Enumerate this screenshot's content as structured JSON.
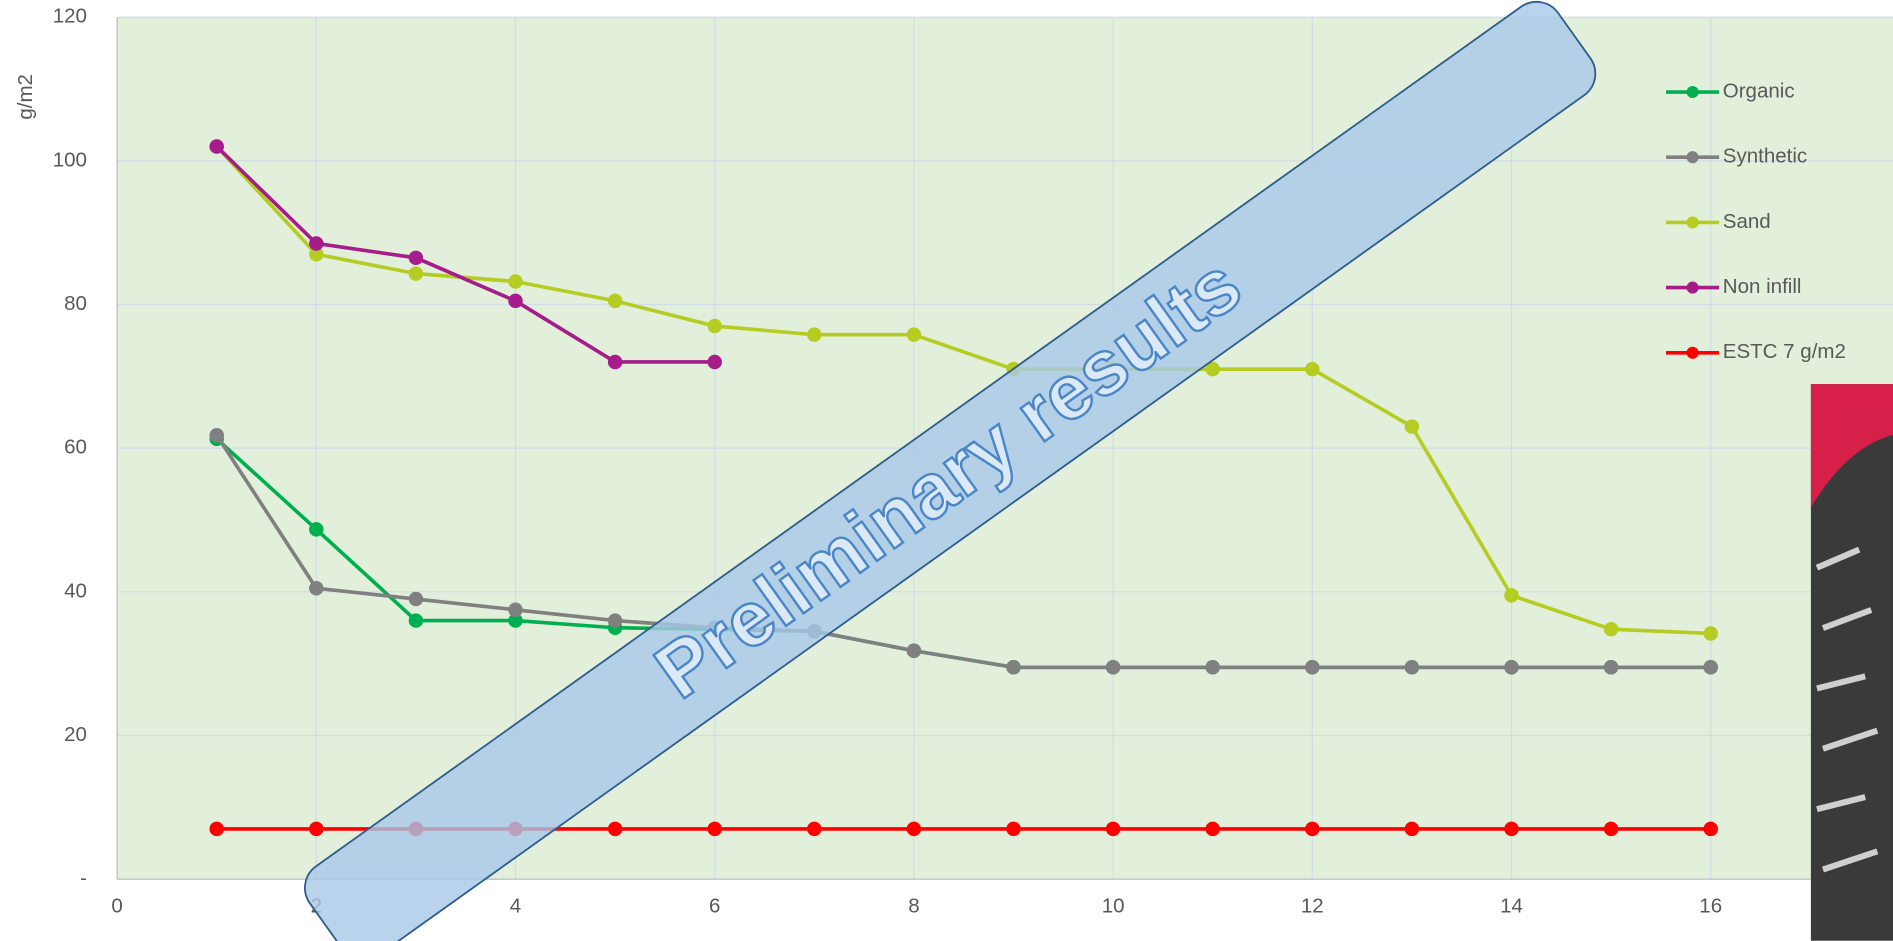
{
  "chart_data": {
    "type": "line",
    "y_label": "g/m2",
    "annotation": "Preliminary results",
    "x": [
      1,
      2,
      3,
      4,
      5,
      6,
      7,
      8,
      9,
      10,
      11,
      12,
      13,
      14,
      15,
      16
    ],
    "xlim": [
      0,
      18
    ],
    "xticks": [
      0,
      2,
      4,
      6,
      8,
      10,
      12,
      14,
      16
    ],
    "ylim": [
      0,
      120
    ],
    "yticks": [
      {
        "value": 0,
        "label": "-"
      },
      20,
      40,
      60,
      80,
      100,
      120
    ],
    "grid": true,
    "legend": "right",
    "series": [
      {
        "name": "Organic",
        "color": "#00b050",
        "values": [
          61.3,
          48.7,
          36,
          36,
          35,
          34.8,
          34.5,
          31.8,
          29.5,
          29.5,
          29.5,
          29.5,
          29.5,
          29.5,
          29.5,
          29.5
        ]
      },
      {
        "name": "Synthetic",
        "color": "#808080",
        "values": [
          61.8,
          40.5,
          39,
          37.5,
          36,
          35,
          34.5,
          31.8,
          29.5,
          29.5,
          29.5,
          29.5,
          29.5,
          29.5,
          29.5,
          29.5
        ]
      },
      {
        "name": "Sand",
        "color": "#b5cc22",
        "values": [
          102,
          87,
          84.3,
          83.2,
          80.5,
          77,
          75.8,
          75.8,
          71,
          71,
          71,
          71,
          63,
          39.5,
          34.8,
          34.2
        ]
      },
      {
        "name": "Non infill",
        "color": "#a51c8a",
        "values": [
          102,
          88.5,
          86.5,
          80.5,
          72,
          72,
          null,
          null,
          null,
          null,
          null,
          null,
          null,
          null,
          null,
          null
        ]
      },
      {
        "name": "ESTC 7 g/m2",
        "color": "#ff0000",
        "values": [
          7,
          7,
          7,
          7,
          7,
          7,
          7,
          7,
          7,
          7,
          7,
          7,
          7,
          7,
          7,
          7
        ]
      }
    ]
  }
}
